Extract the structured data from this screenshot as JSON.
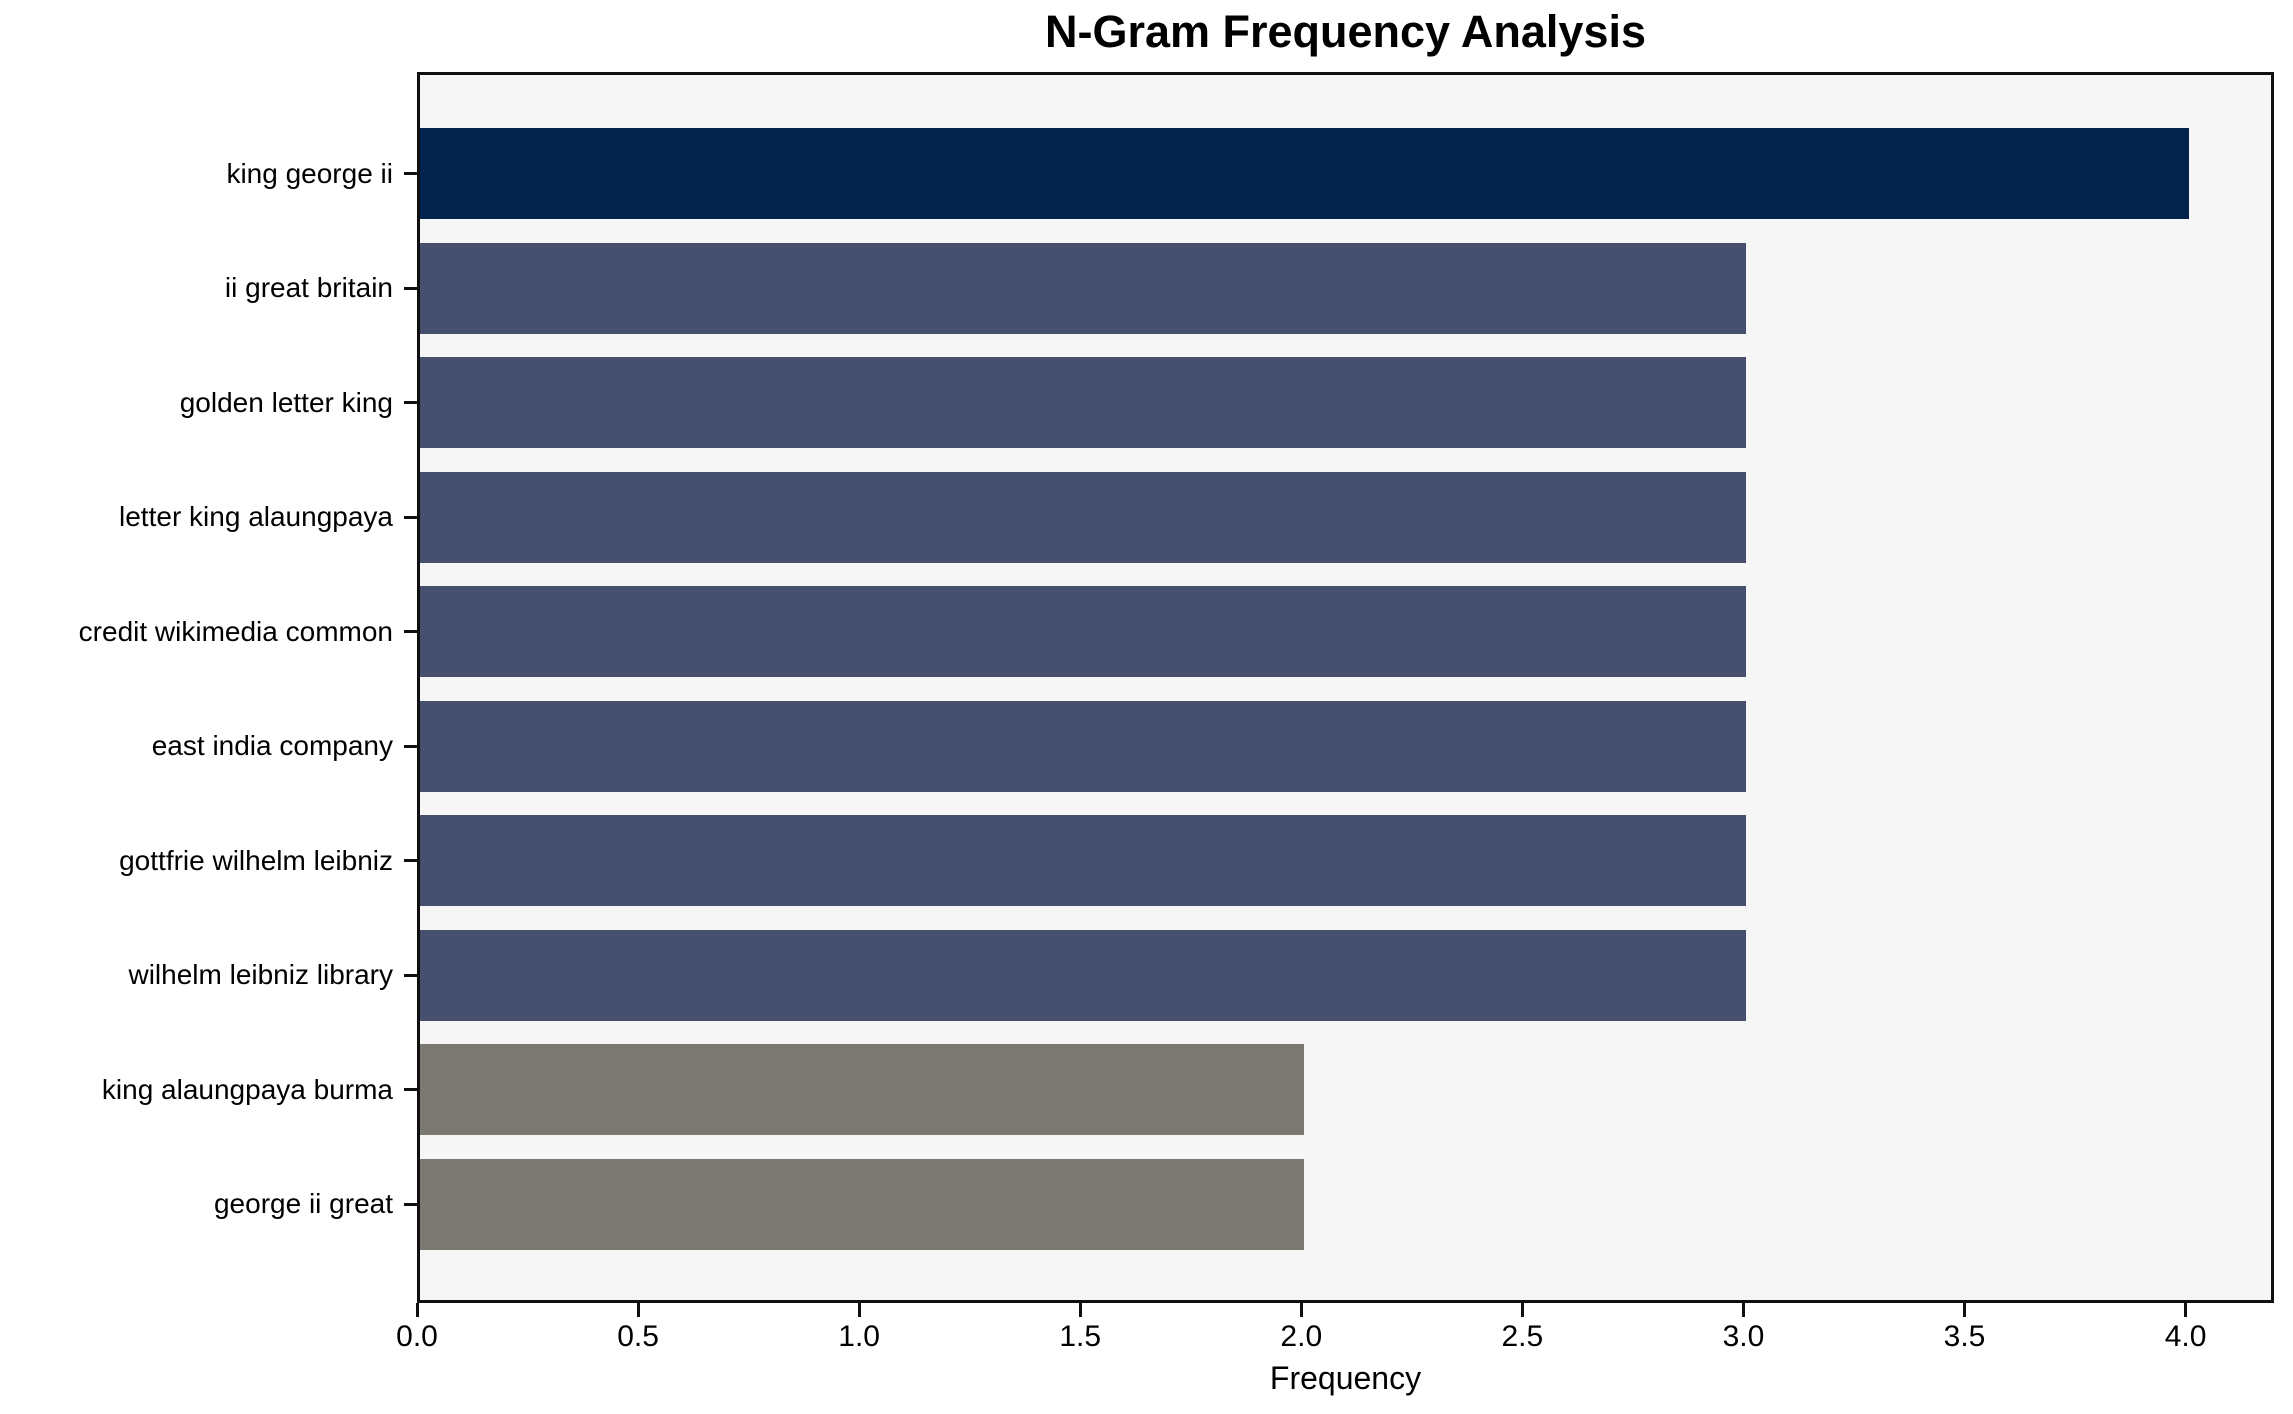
{
  "chart_data": {
    "type": "bar",
    "orientation": "horizontal",
    "title": "N-Gram Frequency Analysis",
    "xlabel": "Frequency",
    "ylabel": "",
    "categories": [
      "king george ii",
      "ii great britain",
      "golden letter king",
      "letter king alaungpaya",
      "credit wikimedia common",
      "east india company",
      "gottfrie wilhelm leibniz",
      "wilhelm leibniz library",
      "king alaungpaya burma",
      "george ii great"
    ],
    "values": [
      4,
      3,
      3,
      3,
      3,
      3,
      3,
      3,
      2,
      2
    ],
    "bar_colors": [
      "#03234d",
      "#46506e",
      "#46506e",
      "#46506e",
      "#46506e",
      "#46506e",
      "#46506e",
      "#46506e",
      "#7b7872",
      "#7b7872"
    ],
    "xlim": [
      0,
      4.2
    ],
    "x_tick_values": [
      0,
      0.5,
      1.0,
      1.5,
      2.0,
      2.5,
      3.0,
      3.5,
      4.0
    ],
    "x_tick_labels": [
      "0.0",
      "0.5",
      "1.0",
      "1.5",
      "2.0",
      "2.5",
      "3.0",
      "3.5",
      "4.0"
    ],
    "grid": false,
    "legend_position": "none",
    "plot_background": "#f6f6f6",
    "figure_background": "#ffffff",
    "axis_color": "#0f0f0f"
  }
}
